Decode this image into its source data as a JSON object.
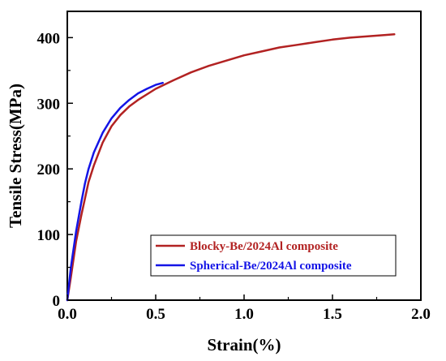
{
  "chart_data": {
    "type": "line",
    "title": "",
    "xlabel": "Strain(%)",
    "ylabel": "Tensile Stress(MPa)",
    "xlim": [
      0.0,
      2.0
    ],
    "ylim": [
      0,
      440
    ],
    "xticks": [
      "0.0",
      "0.5",
      "1.0",
      "1.5",
      "2.0"
    ],
    "xtick_values": [
      0.0,
      0.5,
      1.0,
      1.5,
      2.0
    ],
    "yticks": [
      "0",
      "100",
      "200",
      "300",
      "400"
    ],
    "ytick_values": [
      0,
      100,
      200,
      300,
      400
    ],
    "grid": false,
    "legend_position": "bottom-right",
    "series": [
      {
        "name": "Blocky-Be/2024Al composite",
        "color": "#b22222",
        "x": [
          0.0,
          0.02,
          0.05,
          0.08,
          0.1,
          0.12,
          0.15,
          0.2,
          0.25,
          0.3,
          0.35,
          0.4,
          0.5,
          0.6,
          0.7,
          0.8,
          0.9,
          1.0,
          1.1,
          1.2,
          1.3,
          1.4,
          1.5,
          1.6,
          1.7,
          1.8,
          1.85
        ],
        "y": [
          0,
          35,
          90,
          130,
          155,
          180,
          205,
          240,
          265,
          282,
          295,
          305,
          322,
          335,
          347,
          357,
          365,
          373,
          379,
          385,
          389,
          393,
          397,
          400,
          402,
          404,
          405
        ]
      },
      {
        "name": "Spherical-Be/2024Al composite",
        "color": "#1414e6",
        "x": [
          0.0,
          0.02,
          0.05,
          0.08,
          0.1,
          0.12,
          0.15,
          0.2,
          0.25,
          0.3,
          0.35,
          0.4,
          0.45,
          0.5,
          0.54
        ],
        "y": [
          0,
          50,
          105,
          150,
          178,
          200,
          225,
          255,
          277,
          293,
          305,
          315,
          322,
          328,
          331
        ]
      }
    ]
  }
}
